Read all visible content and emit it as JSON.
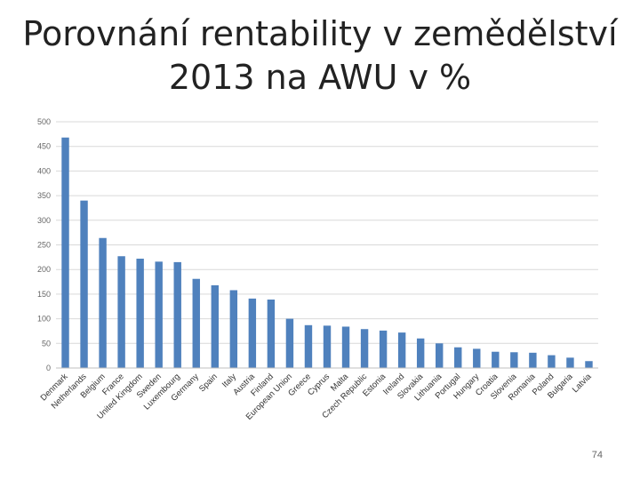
{
  "slide": {
    "title_line1": "Porovnání rentability v zemědělství",
    "title_line2": "2013 na AWU v %",
    "page_number": "74"
  },
  "chart_data": {
    "type": "bar",
    "title": "",
    "xlabel": "",
    "ylabel": "",
    "ylim": [
      0,
      500
    ],
    "yticks": [
      0,
      50,
      100,
      150,
      200,
      250,
      300,
      350,
      400,
      450,
      500
    ],
    "grid": true,
    "bar_color": "#4f81bd",
    "categories": [
      "Denmark",
      "Netherlands",
      "Belgium",
      "France",
      "United Kingdom",
      "Sweden",
      "Luxembourg",
      "Germany",
      "Spain",
      "Italy",
      "Austria",
      "Finland",
      "European Union",
      "Greece",
      "Cyprus",
      "Malta",
      "Czech Republic",
      "Estonia",
      "Ireland",
      "Slovakia",
      "Lithuania",
      "Portugal",
      "Hungary",
      "Croatia",
      "Slovenia",
      "Romania",
      "Poland",
      "Bulgaria",
      "Latvia"
    ],
    "values": [
      468,
      340,
      264,
      227,
      222,
      216,
      215,
      181,
      168,
      158,
      141,
      139,
      100,
      87,
      86,
      84,
      79,
      76,
      72,
      60,
      50,
      42,
      39,
      33,
      32,
      31,
      26,
      21,
      14
    ]
  }
}
